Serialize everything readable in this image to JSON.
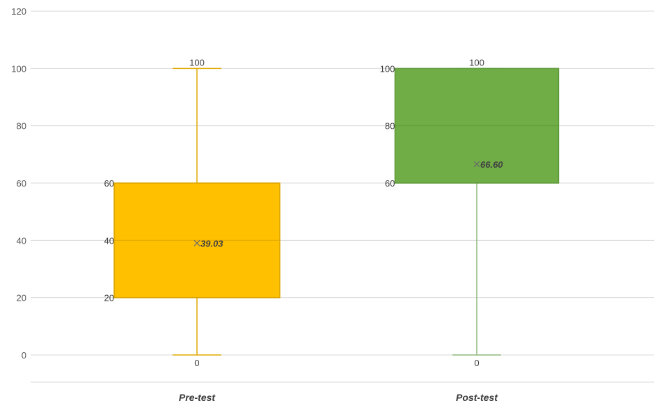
{
  "chart_data": {
    "type": "box",
    "title": "",
    "xlabel": "",
    "ylabel": "",
    "ylim": [
      0,
      120
    ],
    "yticks": [
      0,
      20,
      40,
      60,
      80,
      100,
      120
    ],
    "grid": true,
    "legend": "none",
    "categories": [
      "Pre-test",
      "Post-test"
    ],
    "series": [
      {
        "category": "Pre-test",
        "min": 0,
        "q1": 20,
        "median": 40,
        "q3": 60,
        "max": 100,
        "mean": 39.03,
        "mean_label": "39.03",
        "labels": {
          "min": "0",
          "q1": "20",
          "median": "40",
          "q3": "60",
          "max": "100"
        },
        "color": "#FFC000",
        "edge_color": "#D9A300",
        "whisker_color": "#E0A800"
      },
      {
        "category": "Post-test",
        "min": 0,
        "q1": 60,
        "median": 80,
        "q3": 100,
        "max": 100,
        "mean": 66.6,
        "mean_label": "66.60",
        "labels": {
          "min": "0",
          "q1": "60",
          "median": "80",
          "q3": "100",
          "max": "100"
        },
        "color": "#70AD47",
        "edge_color": "#5E9A3A",
        "whisker_color": "#8DB97A"
      }
    ]
  }
}
